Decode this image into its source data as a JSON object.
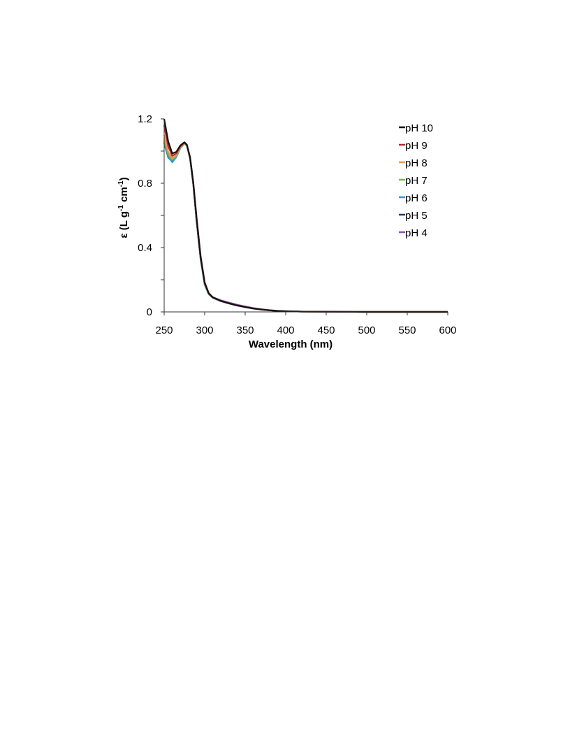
{
  "chart_data": {
    "type": "line",
    "title": "",
    "xlabel": "Wavelength (nm)",
    "ylabel_parts": [
      "ε (L g",
      "-1",
      " cm",
      "-1",
      ")"
    ],
    "xlim": [
      250,
      600
    ],
    "ylim": [
      0,
      1.2
    ],
    "x_ticks": [
      250,
      300,
      350,
      400,
      450,
      500,
      550,
      600
    ],
    "y_ticks": [
      0,
      0.4,
      0.8,
      1.2
    ],
    "y_tick_labels": [
      "0",
      "0.4",
      "0.8",
      "1.2"
    ],
    "grid": false,
    "legend_position": "top-right",
    "x": [
      250,
      255,
      260,
      265,
      270,
      275,
      278,
      282,
      286,
      290,
      295,
      300,
      305,
      310,
      320,
      330,
      340,
      350,
      360,
      370,
      380,
      390,
      400,
      420,
      450,
      500,
      550,
      600
    ],
    "series": [
      {
        "name": "pH 10",
        "color": "#111111",
        "values": [
          1.2,
          1.06,
          0.985,
          0.995,
          1.035,
          1.055,
          1.04,
          0.96,
          0.8,
          0.58,
          0.34,
          0.18,
          0.115,
          0.09,
          0.068,
          0.053,
          0.04,
          0.03,
          0.021,
          0.015,
          0.01,
          0.006,
          0.004,
          0.002,
          0.001,
          0.0,
          0.0,
          0.0
        ]
      },
      {
        "name": "pH 9",
        "color": "#c0252a",
        "values": [
          1.16,
          1.03,
          0.97,
          0.985,
          1.03,
          1.052,
          1.038,
          0.962,
          0.805,
          0.59,
          0.35,
          0.185,
          0.118,
          0.091,
          0.069,
          0.054,
          0.041,
          0.031,
          0.022,
          0.015,
          0.01,
          0.006,
          0.004,
          0.002,
          0.001,
          0.0,
          0.0,
          0.0
        ]
      },
      {
        "name": "pH 8",
        "color": "#f0964a",
        "values": [
          1.1,
          0.995,
          0.955,
          0.975,
          1.025,
          1.05,
          1.036,
          0.958,
          0.8,
          0.582,
          0.342,
          0.18,
          0.114,
          0.089,
          0.068,
          0.053,
          0.04,
          0.03,
          0.021,
          0.015,
          0.01,
          0.006,
          0.004,
          0.002,
          0.001,
          0.0,
          0.0,
          0.0
        ]
      },
      {
        "name": "pH 7",
        "color": "#6cbf4a",
        "values": [
          1.08,
          0.98,
          0.945,
          0.97,
          1.022,
          1.048,
          1.035,
          0.956,
          0.796,
          0.576,
          0.336,
          0.176,
          0.112,
          0.088,
          0.067,
          0.052,
          0.04,
          0.03,
          0.021,
          0.015,
          0.01,
          0.006,
          0.004,
          0.002,
          0.001,
          0.0,
          0.0,
          0.0
        ]
      },
      {
        "name": "pH 6",
        "color": "#2f9ad6",
        "values": [
          1.06,
          0.965,
          0.93,
          0.962,
          1.018,
          1.046,
          1.033,
          0.952,
          0.79,
          0.568,
          0.33,
          0.172,
          0.11,
          0.087,
          0.066,
          0.052,
          0.039,
          0.029,
          0.02,
          0.014,
          0.009,
          0.006,
          0.004,
          0.002,
          0.001,
          0.0,
          0.0,
          0.0
        ]
      },
      {
        "name": "pH 5",
        "color": "#1f3a78",
        "values": [
          1.05,
          0.96,
          0.935,
          0.965,
          1.02,
          1.047,
          1.034,
          0.95,
          0.786,
          0.562,
          0.326,
          0.17,
          0.11,
          0.088,
          0.068,
          0.054,
          0.041,
          0.031,
          0.022,
          0.015,
          0.01,
          0.006,
          0.004,
          0.002,
          0.001,
          0.0,
          0.0,
          0.0
        ]
      },
      {
        "name": "pH 4",
        "color": "#8a4fc0",
        "values": [
          1.07,
          0.97,
          0.945,
          0.97,
          1.024,
          1.05,
          1.036,
          0.954,
          0.792,
          0.57,
          0.334,
          0.176,
          0.114,
          0.092,
          0.072,
          0.058,
          0.045,
          0.034,
          0.024,
          0.017,
          0.011,
          0.007,
          0.005,
          0.002,
          0.001,
          0.0,
          0.0,
          0.0
        ]
      }
    ]
  }
}
